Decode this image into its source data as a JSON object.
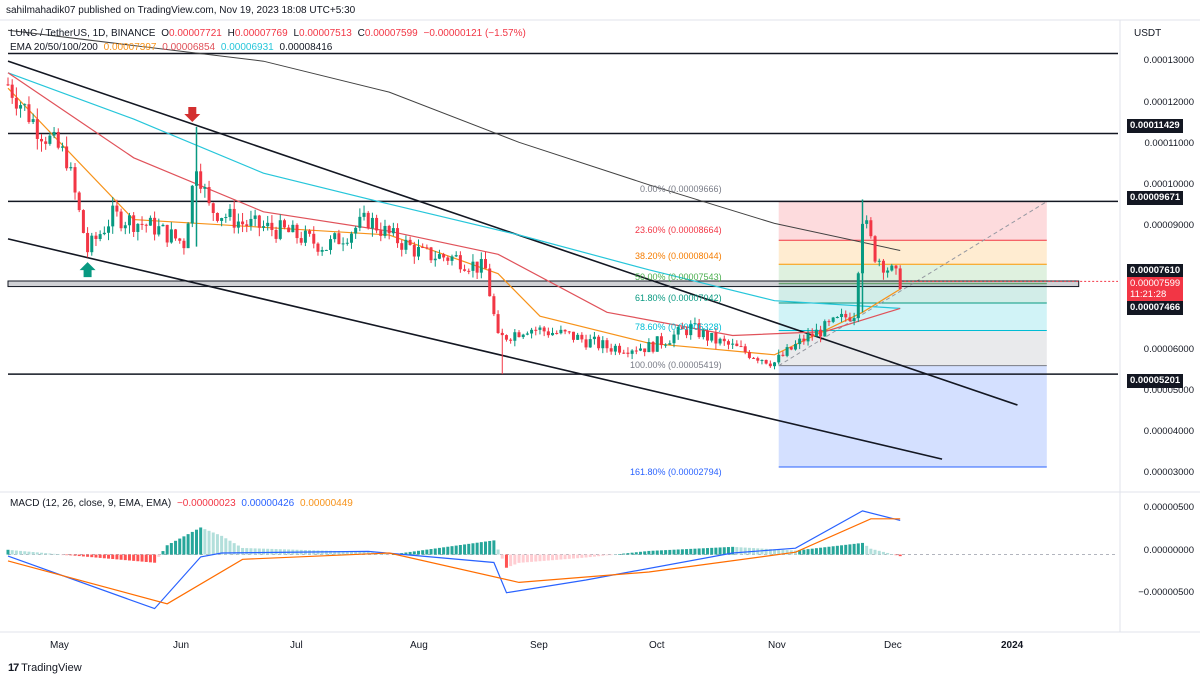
{
  "header": {
    "publisher": "sahilmahadik07 published on TradingView.com, Nov 19, 2023 18:08 UTC+5:30",
    "symbol": "LUNC / TetherUS, 1D, BINANCE",
    "open_label": "O",
    "open": "0.00007721",
    "high_label": "H",
    "high": "0.00007769",
    "low_label": "L",
    "low": "0.00007513",
    "close_label": "C",
    "close": "0.00007599",
    "change": "−0.00000121 (−1.57%)",
    "ema_label": "EMA 20/50/100/200",
    "ema20": "0.00007397",
    "ema50": "0.00006854",
    "ema100": "0.00006931",
    "ema200": "0.00008416",
    "macd_label": "MACD (12, 26, close, 9, EMA, EMA)",
    "macd_hist": "−0.00000023",
    "macd_line": "0.00000426",
    "macd_signal": "0.00000449",
    "currency": "USDT"
  },
  "price_axis": [
    "0.00013000",
    "0.00012000",
    "0.00011000",
    "0.00010000",
    "0.00009000",
    "0.00006000",
    "0.00004000",
    "0.00003000"
  ],
  "price_axis_partial": "0.00005000",
  "badges": {
    "r1": "0.00011429",
    "r2": "0.00009671",
    "r3": "0.00007610",
    "price": "0.00007599",
    "countdown": "11:21:28",
    "r4": "0.00007466",
    "s1": "0.00005201"
  },
  "macd_axis": [
    "0.00000500",
    "0.00000000",
    "−0.00000500"
  ],
  "months": [
    "May",
    "Jun",
    "Jul",
    "Aug",
    "Sep",
    "Oct",
    "Nov",
    "Dec",
    "2024"
  ],
  "fib_labels": [
    {
      "text": "0.00% (0.00009666)",
      "color": "#787b86"
    },
    {
      "text": "23.60% (0.00008664)",
      "color": "#f23645"
    },
    {
      "text": "38.20% (0.00008044)",
      "color": "#f57c00"
    },
    {
      "text": "50.00% (0.00007543)",
      "color": "#4caf50"
    },
    {
      "text": "61.80% (0.00007042)",
      "color": "#089981"
    },
    {
      "text": "78.60% (0.00006328)",
      "color": "#00bcd4"
    },
    {
      "text": "100.00% (0.00005419)",
      "color": "#787b86"
    },
    {
      "text": "161.80% (0.00002794)",
      "color": "#2962ff"
    }
  ],
  "brand": "TradingView",
  "colors": {
    "bull": "#089981",
    "bear": "#f23645",
    "ema20": "#f7931a",
    "ema50": "#e0525a",
    "ema100": "#26c6da",
    "ema200": "#424242",
    "macd": "#2962ff",
    "signal": "#ff6d00"
  },
  "chart_data": {
    "type": "candlestick",
    "title": "LUNC / TetherUS, 1D, BINANCE",
    "x_range": [
      "2023-04-20",
      "2024-01-10"
    ],
    "ylim": [
      2.2e-05,
      0.000139
    ],
    "close_path": [
      [
        "2023-04-20",
        0.000127
      ],
      [
        "2023-04-27",
        0.000116
      ],
      [
        "2023-05-04",
        0.000108
      ],
      [
        "2023-05-09",
        8.4e-05
      ],
      [
        "2023-05-15",
        9.3e-05
      ],
      [
        "2023-05-25",
        9e-05
      ],
      [
        "2023-06-01",
        8.6e-05
      ],
      [
        "2023-06-04",
        0.000107
      ],
      [
        "2023-06-07",
        9.5e-05
      ],
      [
        "2023-06-15",
        9.1e-05
      ],
      [
        "2023-06-25",
        8.9e-05
      ],
      [
        "2023-07-05",
        8.5e-05
      ],
      [
        "2023-07-15",
        9.2e-05
      ],
      [
        "2023-07-20",
        8.8e-05
      ],
      [
        "2023-07-28",
        8.3e-05
      ],
      [
        "2023-08-05",
        8.2e-05
      ],
      [
        "2023-08-12",
        7.9e-05
      ],
      [
        "2023-08-15",
        6.1e-05
      ],
      [
        "2023-08-22",
        6.4e-05
      ],
      [
        "2023-09-01",
        6.2e-05
      ],
      [
        "2023-09-10",
        5.9e-05
      ],
      [
        "2023-09-20",
        5.9e-05
      ],
      [
        "2023-09-30",
        6.4e-05
      ],
      [
        "2023-10-05",
        6.1e-05
      ],
      [
        "2023-10-15",
        5.7e-05
      ],
      [
        "2023-10-20",
        5.5e-05
      ],
      [
        "2023-10-27",
        6.1e-05
      ],
      [
        "2023-11-03",
        6.5e-05
      ],
      [
        "2023-11-08",
        6.8e-05
      ],
      [
        "2023-11-10",
        9.3e-05
      ],
      [
        "2023-11-13",
        8.3e-05
      ],
      [
        "2023-11-19",
        7.6e-05
      ]
    ],
    "ema20": [
      [
        "2023-04-20",
        0.000126
      ],
      [
        "2023-05-20",
        9.2e-05
      ],
      [
        "2023-06-20",
        9e-05
      ],
      [
        "2023-07-20",
        8.8e-05
      ],
      [
        "2023-08-15",
        7.8e-05
      ],
      [
        "2023-08-25",
        6.7e-05
      ],
      [
        "2023-09-20",
        6e-05
      ],
      [
        "2023-10-20",
        5.7e-05
      ],
      [
        "2023-11-10",
        6.8e-05
      ],
      [
        "2023-11-19",
        7.4e-05
      ]
    ],
    "ema50": [
      [
        "2023-04-20",
        0.00013
      ],
      [
        "2023-05-20",
        0.000108
      ],
      [
        "2023-06-20",
        9.4e-05
      ],
      [
        "2023-07-20",
        8.9e-05
      ],
      [
        "2023-08-15",
        8.3e-05
      ],
      [
        "2023-09-10",
        6.8e-05
      ],
      [
        "2023-10-10",
        6.2e-05
      ],
      [
        "2023-11-01",
        6.3e-05
      ],
      [
        "2023-11-19",
        6.9e-05
      ]
    ],
    "ema100": [
      [
        "2023-04-20",
        0.00013
      ],
      [
        "2023-05-20",
        0.000118
      ],
      [
        "2023-06-20",
        0.000104
      ],
      [
        "2023-07-20",
        9.6e-05
      ],
      [
        "2023-08-20",
        8.8e-05
      ],
      [
        "2023-09-20",
        7.9e-05
      ],
      [
        "2023-10-20",
        7.1e-05
      ],
      [
        "2023-11-19",
        6.9e-05
      ]
    ],
    "ema200": [
      [
        "2023-04-20",
        0.000141
      ],
      [
        "2023-06-20",
        0.000133
      ],
      [
        "2023-07-20",
        0.000125
      ],
      [
        "2023-08-20",
        0.000112
      ],
      [
        "2023-09-20",
        0.000101
      ],
      [
        "2023-10-20",
        9.1e-05
      ],
      [
        "2023-11-19",
        8.4e-05
      ]
    ],
    "horizontal_levels": [
      0.000135,
      0.00011429,
      9.671e-05,
      7.61e-05,
      7.466e-05,
      5.201e-05
    ],
    "fibonacci": [
      {
        "ratio": "0.00%",
        "price": 9.666e-05
      },
      {
        "ratio": "23.60%",
        "price": 8.664e-05
      },
      {
        "ratio": "38.20%",
        "price": 8.044e-05
      },
      {
        "ratio": "50.00%",
        "price": 7.543e-05
      },
      {
        "ratio": "61.80%",
        "price": 7.042e-05
      },
      {
        "ratio": "78.60%",
        "price": 6.328e-05
      },
      {
        "ratio": "100.00%",
        "price": 5.419e-05
      },
      {
        "ratio": "161.80%",
        "price": 2.794e-05
      }
    ],
    "trendlines": [
      {
        "from": [
          "2023-04-20",
          0.000133
        ],
        "to": [
          "2023-12-17",
          4.4e-05
        ]
      },
      {
        "from": [
          "2023-04-20",
          8.7e-05
        ],
        "to": [
          "2023-11-29",
          3e-05
        ]
      }
    ],
    "macd": {
      "line": [
        [
          "2023-04-20",
          -2e-07
        ],
        [
          "2023-05-25",
          -6.8e-06
        ],
        [
          "2023-06-05",
          -3e-07
        ],
        [
          "2023-06-10",
          2e-07
        ],
        [
          "2023-07-15",
          4e-07
        ],
        [
          "2023-08-14",
          -1e-06
        ],
        [
          "2023-08-17",
          -4.8e-06
        ],
        [
          "2023-09-05",
          -3.2e-06
        ],
        [
          "2023-10-10",
          2e-07
        ],
        [
          "2023-10-25",
          8e-07
        ],
        [
          "2023-11-10",
          5.5e-06
        ],
        [
          "2023-11-19",
          4.3e-06
        ]
      ],
      "signal": [
        [
          "2023-04-20",
          -8e-07
        ],
        [
          "2023-05-28",
          -6.2e-06
        ],
        [
          "2023-06-15",
          -6e-07
        ],
        [
          "2023-07-20",
          2e-07
        ],
        [
          "2023-08-20",
          -3.5e-06
        ],
        [
          "2023-09-20",
          -2.2e-06
        ],
        [
          "2023-10-25",
          3e-07
        ],
        [
          "2023-11-12",
          4.5e-06
        ],
        [
          "2023-11-19",
          4.5e-06
        ]
      ],
      "ylim": [
        -9.5e-06,
        7.5e-06
      ]
    }
  }
}
